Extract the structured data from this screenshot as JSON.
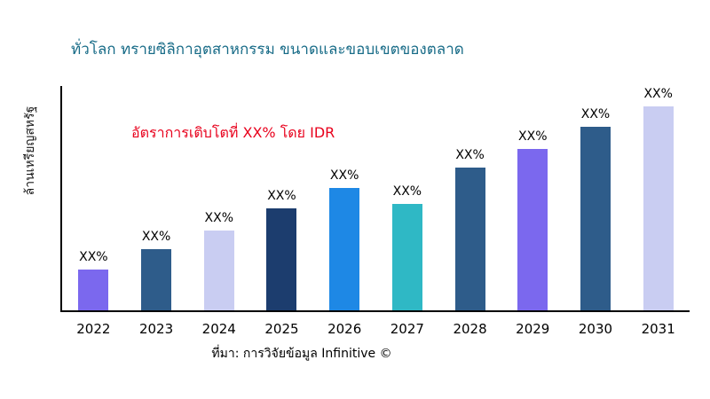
{
  "header": {
    "title": "ทั่วโลก ทรายซิลิกาอุตสาหกรรม ขนาดและขอบเขตของตลาด"
  },
  "annotation": {
    "text": "อัตราการเติบโตที่ XX% โดย IDR"
  },
  "footer": {
    "source": "ที่มา: การวิจัยข้อมูล Infinitive ©"
  },
  "style": {
    "title_color": "#176b87",
    "annotation_color": "#e8001c",
    "axis_color": "#000000"
  },
  "chart_data": {
    "type": "bar",
    "title": "ทั่วโลก ทรายซิลิกาอุตสาหกรรม ขนาดและขอบเขตของตลาด",
    "xlabel": "",
    "ylabel": "ล้านเหรียญสหรัฐ",
    "categories": [
      "2022",
      "2023",
      "2024",
      "2025",
      "2026",
      "2027",
      "2028",
      "2029",
      "2030",
      "2031"
    ],
    "values": [
      20,
      30,
      39,
      50,
      60,
      52,
      70,
      79,
      90,
      100
    ],
    "bar_labels": [
      "XX%",
      "XX%",
      "XX%",
      "XX%",
      "XX%",
      "XX%",
      "XX%",
      "XX%",
      "XX%",
      "XX%"
    ],
    "colors": [
      "#7b68ee",
      "#2e5c8a",
      "#c9cdf2",
      "#1c3d6e",
      "#1e88e5",
      "#2fb8c5",
      "#2e5c8a",
      "#7b68ee",
      "#2e5c8a",
      "#c9cdf2"
    ],
    "annotation": "อัตราการเติบโตที่ XX% โดย IDR",
    "ylim": [
      0,
      110
    ],
    "grid": false,
    "legend": "none"
  }
}
